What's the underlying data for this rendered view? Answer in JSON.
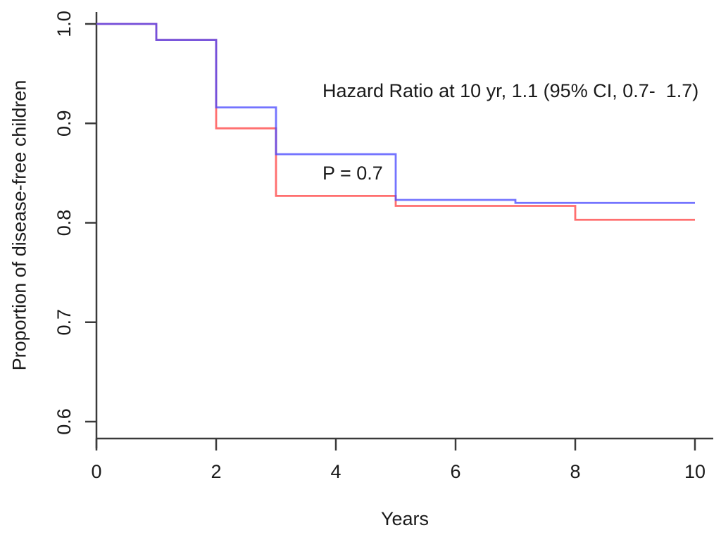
{
  "chart_data": {
    "type": "line",
    "subtype": "kaplan-meier-step-curves",
    "title": "",
    "xlabel": "Years",
    "ylabel": "Proportion of disease-free children",
    "xlim": [
      0,
      10
    ],
    "ylim": [
      0.6,
      1.0
    ],
    "xticks": [
      0,
      2,
      4,
      6,
      8,
      10
    ],
    "xtick_labels": [
      "0",
      "2",
      "4",
      "6",
      "8",
      "10"
    ],
    "yticks": [
      1.0,
      0.9,
      0.8,
      0.7,
      0.6
    ],
    "ytick_labels": [
      "1.0",
      "0.9",
      "0.8",
      "0.7",
      "0.6"
    ],
    "grid": false,
    "legend_position": "none",
    "axis_color": "#3a3a3a",
    "text_color": "#1a1a1a",
    "annotation": {
      "line1": "Hazard Ratio at 10 yr, 1.1 (95% CI, 0.7-  1.7)",
      "line2": "P = 0.7"
    },
    "series": [
      {
        "name": "group-red",
        "color": "#FF6F6F",
        "opacity": 1,
        "points": [
          [
            0,
            1.0
          ],
          [
            1,
            0.984
          ],
          [
            2,
            0.895
          ],
          [
            3,
            0.827
          ],
          [
            5,
            0.817
          ],
          [
            8,
            0.803
          ],
          [
            10,
            0.803
          ]
        ]
      },
      {
        "name": "group-blue",
        "color": "#4646FF",
        "opacity": 0.75,
        "points": [
          [
            0,
            1.0
          ],
          [
            1,
            0.984
          ],
          [
            2,
            0.916
          ],
          [
            3,
            0.869
          ],
          [
            5,
            0.823
          ],
          [
            7,
            0.82
          ],
          [
            10,
            0.82
          ]
        ]
      }
    ]
  }
}
